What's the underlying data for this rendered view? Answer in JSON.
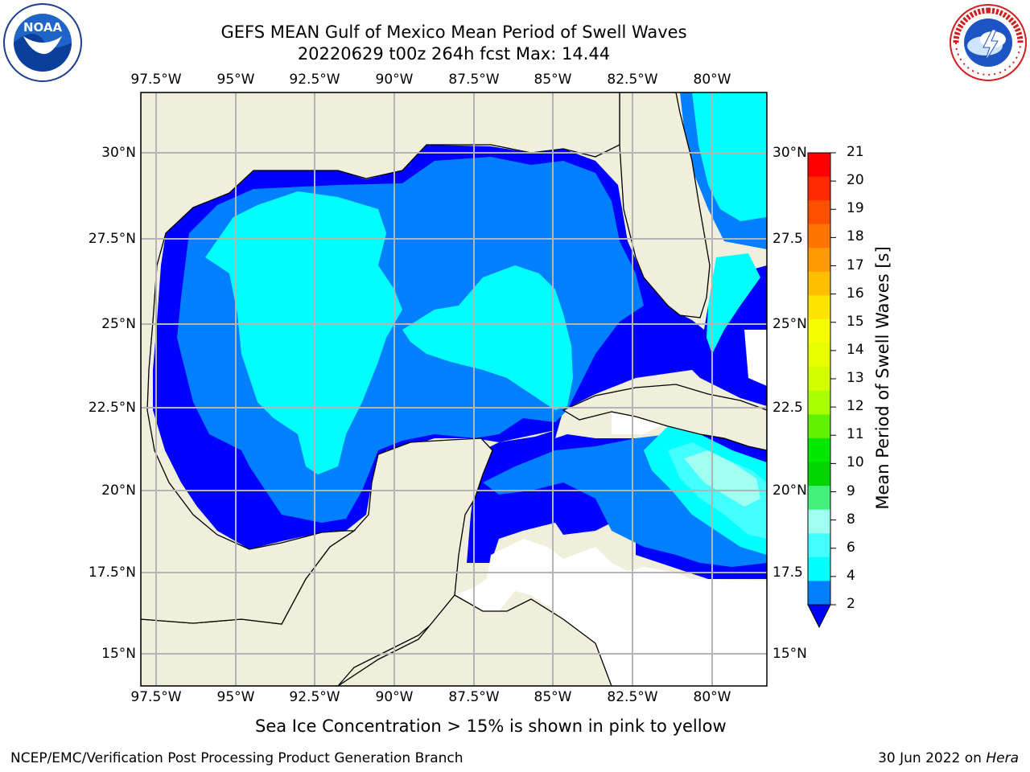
{
  "title": {
    "line1": "GEFS MEAN Gulf of Mexico Mean Period of Swell Waves",
    "line2": "20220629 t00z 264h fcst   Max: 14.44"
  },
  "logos": {
    "left": {
      "name": "NOAA",
      "text": "NOAA"
    },
    "right": {
      "name": "National Weather Service",
      "text": "NATIONAL WEATHER SERVICE"
    }
  },
  "map": {
    "lon_labels": [
      "97.5°W",
      "95°W",
      "92.5°W",
      "90°W",
      "87.5°W",
      "85°W",
      "82.5°W",
      "80°W"
    ],
    "lat_labels_left": [
      "30°N",
      "27.5°N",
      "25°N",
      "22.5°N",
      "20°N",
      "17.5°N",
      "15°N"
    ],
    "lat_labels_right": [
      "30°N",
      "27.5",
      "25°N",
      "22.5",
      "20°N",
      "17.5",
      "15°N"
    ],
    "extent": {
      "lon_min": -98.0,
      "lon_max": -78.3,
      "lat_min": 14.0,
      "lat_max": 31.8
    },
    "land_color": "#efefdc",
    "grid_color": "#b4b4b4"
  },
  "colorbar": {
    "label": "Mean Period of Swell Waves [s]",
    "ticks": [
      "21",
      "20",
      "19",
      "18",
      "17",
      "16",
      "15",
      "14",
      "13",
      "12",
      "11",
      "10",
      "9",
      "8",
      "6",
      "4",
      "2"
    ],
    "colors": [
      "#ff0000",
      "#ff2a00",
      "#ff5000",
      "#ff7500",
      "#ff9a00",
      "#ffbe00",
      "#ffe400",
      "#f5ff00",
      "#e8ff00",
      "#d2ff00",
      "#a8ff00",
      "#60f000",
      "#00e700",
      "#00d400",
      "#44f07c",
      "#a0fff0",
      "#44ffff",
      "#00ffff",
      "#0080ff"
    ],
    "extend_color": "#0000ff"
  },
  "caption": "Sea Ice Concentration > 15% is shown in pink to yellow",
  "footer": {
    "left": "NCEP/EMC/Verification Post Processing Product Generation Branch",
    "right_prefix": "30 Jun 2022 on ",
    "right_host": "Hera"
  }
}
